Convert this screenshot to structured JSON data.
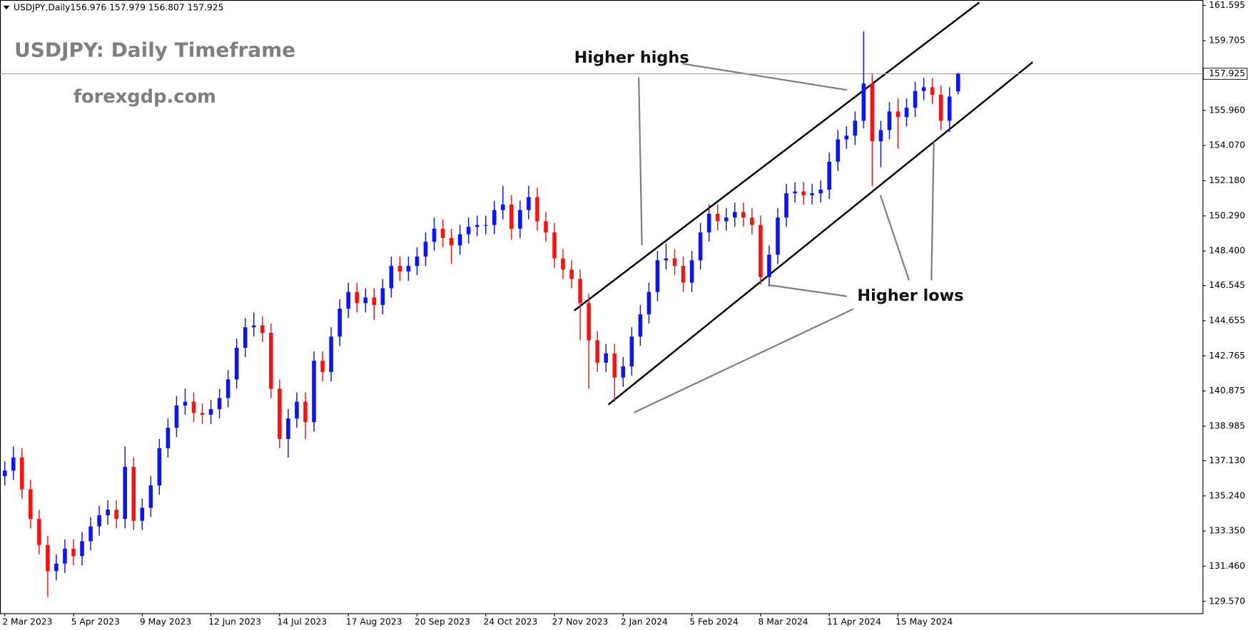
{
  "chart_data": {
    "type": "candlestick",
    "symbol": "USDJPY,Daily",
    "title": "USDJPY: Daily Timeframe",
    "subtitle": "forexgdp.com",
    "annotations": [
      "Higher highs",
      "Higher lows"
    ],
    "up_color": "#0a14ff",
    "down_color": "#ff1010",
    "price_line_color": "#8fa6bf",
    "categories": [
      "2 Mar 2023",
      null,
      null,
      null,
      null,
      null,
      null,
      null,
      "5 Apr 2023",
      null,
      null,
      null,
      null,
      null,
      null,
      null,
      "9 May 2023",
      null,
      null,
      null,
      null,
      null,
      null,
      null,
      "12 Jun 2023",
      null,
      null,
      null,
      null,
      null,
      null,
      null,
      "14 Jul 2023",
      null,
      null,
      null,
      null,
      null,
      null,
      null,
      "17 Aug 2023",
      null,
      null,
      null,
      null,
      null,
      null,
      null,
      "20 Sep 2023",
      null,
      null,
      null,
      null,
      null,
      null,
      null,
      "24 Oct 2023",
      null,
      null,
      null,
      null,
      null,
      null,
      null,
      "27 Nov 2023",
      null,
      null,
      null,
      null,
      null,
      null,
      null,
      "2 Jan 2024",
      null,
      null,
      null,
      null,
      null,
      null,
      null,
      "5 Feb 2024",
      null,
      null,
      null,
      null,
      null,
      null,
      null,
      "8 Mar 2024",
      null,
      null,
      null,
      null,
      null,
      null,
      null,
      "11 Apr 2024",
      null,
      null,
      null,
      null,
      null,
      null,
      null,
      "15 May 2024",
      null,
      null,
      null,
      null,
      null,
      null,
      null
    ],
    "open": [
      136.3,
      136.6,
      137.3,
      135.6,
      134.0,
      132.6,
      131.2,
      131.6,
      132.4,
      132.0,
      132.8,
      133.6,
      134.2,
      134.5,
      134.0,
      136.8,
      133.9,
      134.6,
      135.8,
      137.8,
      138.9,
      140.1,
      140.3,
      139.7,
      139.6,
      139.9,
      140.5,
      141.5,
      143.2,
      144.3,
      144.4,
      144.0,
      141.0,
      138.3,
      139.4,
      140.3,
      139.2,
      142.5,
      141.9,
      143.8,
      145.3,
      146.2,
      145.6,
      145.9,
      145.5,
      146.4,
      147.6,
      147.3,
      147.6,
      148.1,
      148.9,
      149.6,
      149.1,
      148.7,
      149.3,
      149.7,
      149.8,
      149.8,
      150.6,
      150.9,
      149.6,
      150.6,
      151.3,
      150.0,
      149.4,
      148.0,
      147.4,
      146.9,
      145.6,
      143.6,
      142.4,
      142.9,
      141.6,
      142.2,
      143.8,
      145.0,
      146.2,
      147.9,
      148.0,
      147.6,
      146.7,
      147.9,
      149.4,
      150.4,
      150.0,
      150.2,
      150.5,
      150.2,
      149.8,
      147.0,
      148.2,
      150.2,
      151.5,
      151.6,
      151.4,
      151.5,
      151.7,
      153.2,
      154.4,
      154.6,
      155.4,
      157.4,
      154.3,
      154.9,
      155.9,
      155.6,
      156.1,
      157.0,
      157.2,
      156.8,
      155.4,
      156.976
    ],
    "high": [
      137.1,
      137.9,
      137.8,
      136.1,
      134.5,
      133.1,
      132.1,
      132.9,
      132.9,
      133.3,
      134.1,
      134.7,
      135.0,
      135.0,
      137.9,
      137.3,
      135.1,
      136.3,
      138.3,
      139.4,
      140.6,
      141.0,
      140.8,
      140.2,
      140.4,
      141.0,
      142.0,
      143.7,
      144.8,
      145.1,
      144.9,
      144.5,
      141.5,
      139.9,
      140.8,
      140.8,
      143.0,
      143.0,
      144.3,
      145.8,
      146.7,
      146.7,
      146.4,
      146.4,
      146.9,
      148.1,
      148.1,
      148.1,
      148.6,
      149.4,
      150.2,
      150.1,
      149.6,
      149.8,
      150.2,
      150.3,
      150.3,
      151.1,
      151.9,
      151.4,
      151.1,
      151.9,
      151.8,
      150.5,
      149.9,
      148.5,
      147.9,
      147.4,
      146.1,
      144.1,
      143.4,
      143.4,
      142.7,
      144.3,
      145.5,
      146.7,
      148.4,
      148.8,
      148.5,
      148.1,
      148.4,
      149.9,
      150.9,
      150.9,
      150.7,
      151.0,
      151.0,
      150.7,
      150.3,
      148.7,
      150.7,
      152.0,
      152.1,
      152.1,
      152.0,
      152.2,
      153.7,
      154.9,
      155.1,
      155.9,
      160.2,
      157.9,
      155.4,
      156.4,
      156.6,
      156.6,
      157.5,
      157.7,
      157.7,
      157.3,
      157.2,
      157.979
    ],
    "low": [
      135.8,
      136.1,
      135.1,
      133.5,
      132.1,
      129.8,
      130.7,
      131.1,
      131.5,
      131.5,
      132.3,
      133.1,
      133.7,
      133.5,
      133.5,
      133.4,
      133.4,
      134.1,
      135.3,
      137.3,
      138.4,
      139.6,
      139.2,
      139.1,
      139.1,
      139.4,
      140.0,
      141.0,
      142.7,
      143.8,
      143.5,
      140.5,
      137.8,
      137.3,
      138.9,
      138.3,
      138.7,
      141.4,
      141.4,
      143.3,
      144.8,
      145.1,
      145.1,
      144.7,
      145.0,
      145.9,
      146.8,
      146.8,
      147.1,
      147.6,
      148.4,
      148.6,
      147.7,
      148.2,
      148.8,
      149.2,
      149.3,
      149.3,
      150.1,
      149.0,
      149.1,
      150.1,
      149.5,
      148.9,
      147.5,
      146.9,
      146.4,
      143.6,
      141.0,
      141.9,
      141.9,
      140.3,
      141.1,
      141.7,
      143.3,
      144.5,
      145.7,
      147.4,
      147.1,
      146.2,
      146.2,
      147.4,
      148.9,
      149.5,
      149.5,
      149.7,
      149.7,
      149.3,
      146.6,
      146.5,
      147.7,
      149.7,
      151.0,
      150.9,
      150.9,
      151.0,
      151.2,
      152.7,
      153.9,
      154.1,
      155.0,
      151.9,
      152.9,
      154.4,
      153.9,
      155.1,
      155.6,
      156.5,
      156.3,
      154.9,
      154.8,
      156.807
    ],
    "close": [
      136.6,
      137.3,
      135.6,
      134.0,
      132.6,
      131.2,
      131.6,
      132.4,
      132.0,
      132.8,
      133.6,
      134.2,
      134.5,
      134.0,
      136.8,
      133.9,
      134.6,
      135.8,
      137.8,
      138.9,
      140.1,
      140.3,
      139.7,
      139.6,
      139.9,
      140.5,
      141.5,
      143.2,
      144.3,
      144.4,
      144.0,
      141.0,
      138.3,
      139.4,
      140.3,
      139.2,
      142.5,
      141.9,
      143.8,
      145.3,
      146.2,
      145.6,
      145.9,
      145.5,
      146.4,
      147.6,
      147.3,
      147.6,
      148.1,
      148.9,
      149.6,
      149.1,
      148.7,
      149.3,
      149.7,
      149.8,
      149.8,
      150.6,
      150.9,
      149.6,
      150.6,
      151.3,
      150.0,
      149.4,
      148.0,
      147.4,
      146.9,
      145.6,
      143.6,
      142.4,
      142.9,
      141.6,
      142.2,
      143.8,
      145.0,
      146.2,
      147.9,
      148.0,
      147.6,
      146.7,
      147.9,
      149.4,
      150.4,
      150.0,
      150.2,
      150.5,
      150.2,
      149.8,
      147.0,
      148.2,
      150.2,
      151.5,
      151.6,
      151.4,
      151.5,
      151.7,
      153.2,
      154.4,
      154.6,
      155.4,
      157.4,
      154.3,
      154.9,
      155.9,
      155.6,
      156.1,
      157.0,
      157.2,
      156.8,
      155.4,
      156.7,
      157.925
    ],
    "ylim": [
      128.93,
      161.89
    ],
    "yticks": [
      161.595,
      159.705,
      {
        "value": 155.96,
        "label": "155.960"
      },
      {
        "value": 154.07,
        "label": "154.070"
      },
      {
        "value": 152.18,
        "label": "152.180"
      },
      {
        "value": 150.29,
        "label": "150.290"
      },
      {
        "value": 148.4,
        "label": "148.400"
      },
      146.545,
      144.655,
      142.765,
      140.875,
      138.985,
      {
        "value": 137.13,
        "label": "137.130"
      },
      {
        "value": 135.24,
        "label": "135.240"
      },
      {
        "value": 133.35,
        "label": "133.350"
      },
      {
        "value": 131.46,
        "label": "131.460"
      },
      {
        "value": 129.57,
        "label": "129.570"
      }
    ],
    "grid": false
  }
}
